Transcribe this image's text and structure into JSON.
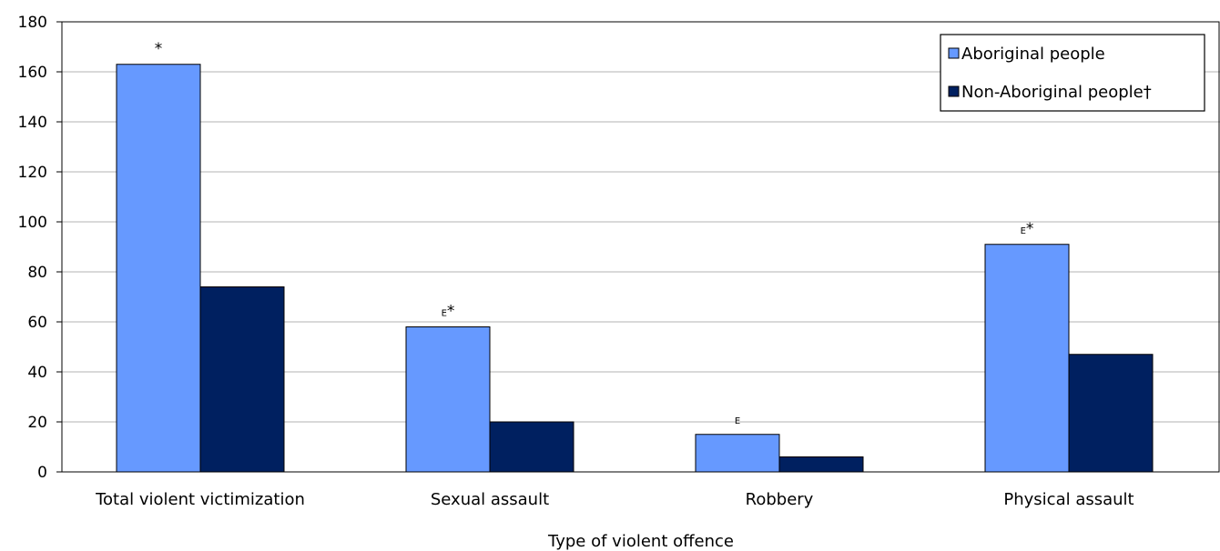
{
  "chart_data": {
    "type": "bar",
    "xlabel": "Type of violent offence",
    "ylabel": "",
    "ylim": [
      0,
      180
    ],
    "yticks": [
      0,
      20,
      40,
      60,
      80,
      100,
      120,
      140,
      160,
      180
    ],
    "grid": true,
    "legend_position": "top-right",
    "categories": [
      "Total violent victimization",
      "Sexual assault",
      "Robbery",
      "Physical assault"
    ],
    "series": [
      {
        "name": "Aboriginal people",
        "color": "#6699ff",
        "values": [
          163,
          58,
          15,
          91
        ],
        "annotations": [
          "*",
          "E*",
          "E",
          "E*"
        ]
      },
      {
        "name": "Non-Aboriginal people†",
        "color": "#002060",
        "values": [
          74,
          20,
          6,
          47
        ],
        "annotations": [
          "",
          "",
          "",
          ""
        ]
      }
    ]
  }
}
